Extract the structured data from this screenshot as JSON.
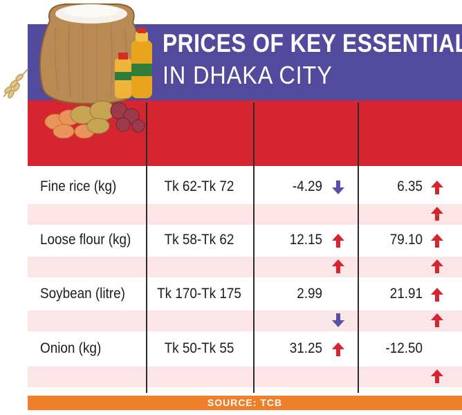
{
  "header": {
    "title_line1": "PRICES OF KEY ESSENTIALS",
    "title_line2": "IN DHAKA CITY"
  },
  "colors": {
    "banner": "#524a9c",
    "header_band": "#d42530",
    "row_tint": "#fbe5e7",
    "source_bar": "#ee7f2b",
    "arrow_up": "#d42530",
    "arrow_down": "#5a4fa8"
  },
  "chart_data": {
    "type": "table",
    "title": "PRICES OF KEY ESSENTIALS IN DHAKA CITY",
    "rows": [
      {
        "item": "Fine rice (kg)",
        "price": "Tk 62-Tk 72",
        "col3": "-4.29",
        "col3_arrow": "down",
        "col3_sub_arrow": "",
        "col4": "6.35",
        "col4_arrow": "up",
        "col4_sub_arrow": "up"
      },
      {
        "item": "Loose flour (kg)",
        "price": "Tk 58-Tk 62",
        "col3": "12.15",
        "col3_arrow": "up",
        "col3_sub_arrow": "up",
        "col4": "79.10",
        "col4_arrow": "up",
        "col4_sub_arrow": "up"
      },
      {
        "item": "Soybean (litre)",
        "price": "Tk 170-Tk 175",
        "col3": "2.99",
        "col3_arrow": "",
        "col3_sub_arrow": "down",
        "col4": "21.91",
        "col4_arrow": "up",
        "col4_sub_arrow": "up"
      },
      {
        "item": "Onion (kg)",
        "price": "Tk 50-Tk 55",
        "col3": "31.25",
        "col3_arrow": "up",
        "col3_sub_arrow": "",
        "col4": "-12.50",
        "col4_arrow": "",
        "col4_sub_arrow": "up"
      }
    ]
  },
  "footer": {
    "source": "SOURCE: TCB"
  },
  "illustration": {
    "icon": "rice-sack-oil-eggs-potatoes-onions-illustration"
  }
}
